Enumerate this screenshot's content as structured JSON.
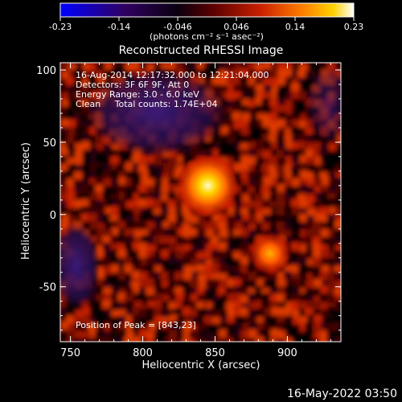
{
  "colorbar": {
    "ticks": [
      "-0.23",
      "-0.14",
      "-0.046",
      "0.046",
      "0.14",
      "0.23"
    ],
    "unit_label": "(photons cm⁻² s⁻¹ asec⁻²)",
    "colors": [
      "#0000ff",
      "#300060",
      "#000000",
      "#5a0000",
      "#c81e00",
      "#ff7a00",
      "#ffd200",
      "#ffffff"
    ]
  },
  "plot": {
    "title": "Reconstructed RHESSI Image",
    "xlabel": "Heliocentric X (arcsec)",
    "ylabel": "Heliocentric Y (arcsec)",
    "x_ticks": [
      "750",
      "800",
      "850",
      "900"
    ],
    "y_ticks": [
      "100",
      "50",
      "0",
      "-50"
    ],
    "xlim": [
      743,
      937
    ],
    "ylim": [
      -88,
      105
    ]
  },
  "annotations": {
    "time_range": "16-Aug-2014 12:17:32.000 to 12:21:04.000",
    "detectors": "Detectors: 3F 6F 9F, Att 0",
    "energy": "Energy Range: 3.0 - 6.0 keV",
    "method": "Clean     Total counts: 1.74E+04",
    "peak": "Position of Peak = [843,23]"
  },
  "footer": {
    "timestamp": "16-May-2022 03:50"
  },
  "sources": [
    {
      "x": 845,
      "y": 20,
      "intensity": 0.23
    },
    {
      "x": 888,
      "y": -27,
      "intensity": 0.16
    }
  ]
}
